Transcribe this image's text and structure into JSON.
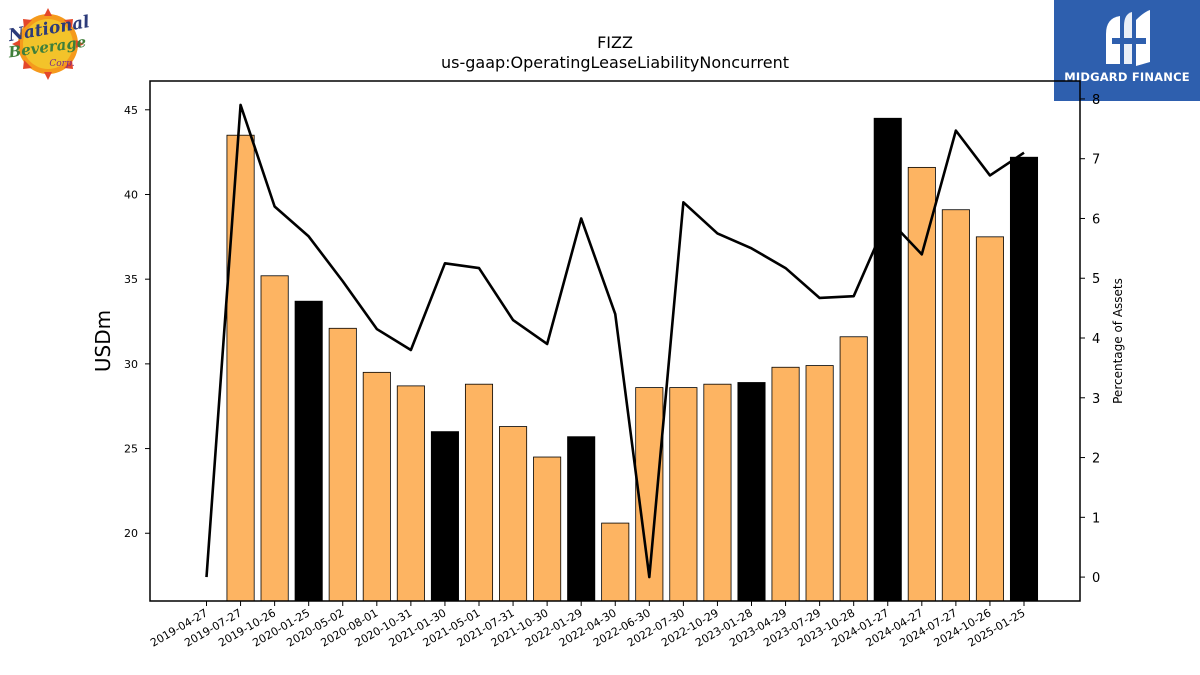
{
  "logos": {
    "left": {
      "icon": "national-beverage-logo",
      "text": [
        "National",
        "Beverage",
        "Corp."
      ]
    },
    "right": {
      "icon": "midgard-finance-logo",
      "text": "MIDGARD FINANCE",
      "color": "#2e5fae"
    }
  },
  "chart_data": {
    "type": "bar",
    "title": "FIZZ",
    "subtitle": "us-gaap:OperatingLeaseLiabilityNoncurrent",
    "ylabel": "USDm",
    "y2label": "Percentage of Assets",
    "ylim": [
      16.0,
      46.7
    ],
    "y2lim": [
      -0.4,
      8.3
    ],
    "yticks": [
      20,
      25,
      30,
      35,
      40,
      45
    ],
    "y2ticks": [
      0,
      1,
      2,
      3,
      4,
      5,
      6,
      7,
      8
    ],
    "categories": [
      "2019-04-27",
      "2019-07-27",
      "2019-10-26",
      "2020-01-25",
      "2020-05-02",
      "2020-08-01",
      "2020-10-31",
      "2021-01-30",
      "2021-05-01",
      "2021-07-31",
      "2021-10-30",
      "2022-01-29",
      "2022-04-30",
      "2022-06-30",
      "2022-07-30",
      "2022-10-29",
      "2023-01-28",
      "2023-04-29",
      "2023-07-29",
      "2023-10-28",
      "2024-01-27",
      "2024-04-27",
      "2024-07-27",
      "2024-10-26",
      "2025-01-25"
    ],
    "series": [
      {
        "values": [
          null,
          43.5,
          35.2,
          33.7,
          32.1,
          29.5,
          28.7,
          26.0,
          28.8,
          26.3,
          24.5,
          25.7,
          20.6,
          28.6,
          28.6,
          28.8,
          28.9,
          29.8,
          29.9,
          31.6,
          44.5,
          41.6,
          39.1,
          37.5,
          42.2
        ],
        "colors": [
          "#fdb462",
          "#fdb462",
          "#fdb462",
          "#000000",
          "#fdb462",
          "#fdb462",
          "#fdb462",
          "#000000",
          "#fdb462",
          "#fdb462",
          "#fdb462",
          "#000000",
          "#fdb462",
          "#fdb462",
          "#fdb462",
          "#fdb462",
          "#000000",
          "#fdb462",
          "#fdb462",
          "#fdb462",
          "#000000",
          "#fdb462",
          "#fdb462",
          "#fdb462",
          "#000000"
        ]
      },
      {
        "type": "line",
        "axis": "right",
        "color": "#000000",
        "values": [
          0.0,
          7.9,
          6.2,
          5.7,
          4.95,
          4.15,
          3.8,
          5.25,
          5.17,
          4.3,
          3.9,
          6.0,
          4.4,
          0.0,
          6.27,
          5.75,
          5.5,
          5.17,
          4.67,
          4.7,
          6.0,
          5.4,
          7.47,
          6.72,
          7.1
        ]
      }
    ],
    "grid": false,
    "legend": "none"
  }
}
